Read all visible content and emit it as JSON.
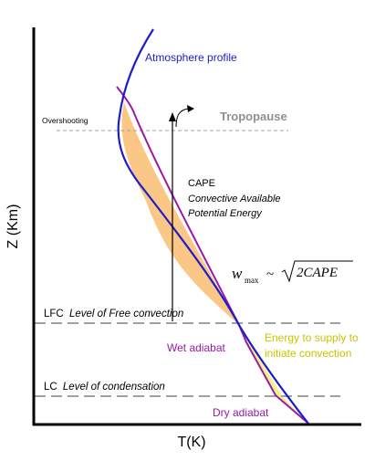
{
  "labels": {
    "axis_y": "Z (Km)",
    "axis_x": "T(K)",
    "atmosphere_profile": "Atmosphere profile",
    "tropopause": "Tropopause",
    "overshooting": "Overshooting",
    "cape_title": "CAPE",
    "cape_line1": "Convective Available",
    "cape_line2": "Potential Energy",
    "lfc_abbr": "LFC",
    "lfc_full": "Level of Free convection",
    "lc_abbr": "LC",
    "lc_full": "Level of condensation",
    "wet_adiabat": "Wet adiabat",
    "dry_adiabat": "Dry adiabat",
    "energy_line1": "Energy to supply to",
    "energy_line2": "initiate convection",
    "formula_w": "w",
    "formula_sub": "max",
    "formula_tilde": "~",
    "formula_arg": "2CAPE"
  },
  "colors": {
    "atmosphere_profile": "#1c1ccc",
    "parcel_curve": "#9a1aa8",
    "cape_fill": "#fbc787",
    "cin_fill": "#f4f08c",
    "energy_text": "#c9c400",
    "dashed_lines": "#a0a0a0",
    "axis": "#000000",
    "tropopause_text": "#909090"
  }
}
